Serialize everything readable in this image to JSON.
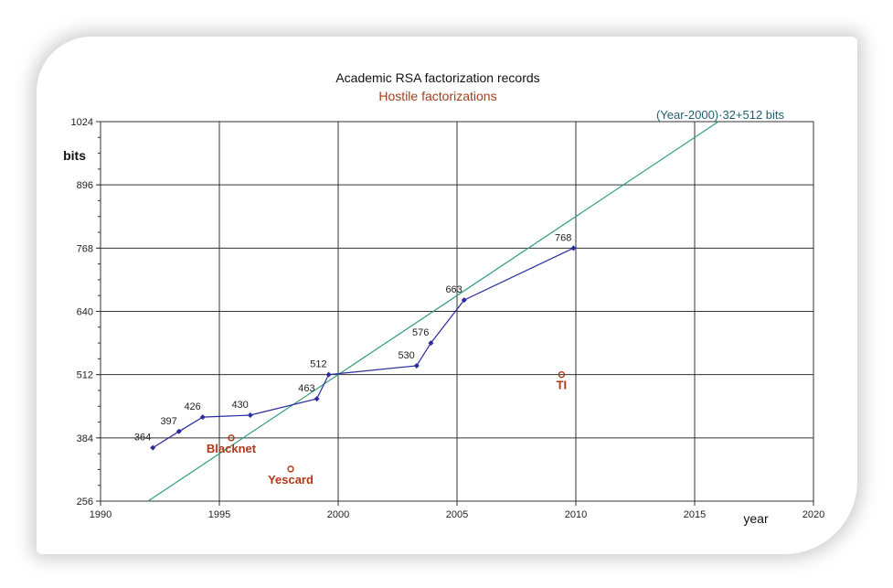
{
  "chart_data": {
    "type": "line",
    "title": "Academic RSA factorization records",
    "subtitle": "Hostile factorizations",
    "ylabel": "bits",
    "xlabel": "year",
    "xlim": [
      1990,
      2020
    ],
    "ylim": [
      256,
      1024
    ],
    "x_ticks": [
      "1990",
      "1995",
      "2000",
      "2005",
      "2010",
      "2015",
      "2020"
    ],
    "y_ticks": [
      "256",
      "384",
      "512",
      "640",
      "768",
      "896",
      "1024"
    ],
    "x_tick_values": [
      1990,
      1995,
      2000,
      2005,
      2010,
      2015,
      2020
    ],
    "y_tick_values": [
      256,
      384,
      512,
      640,
      768,
      896,
      1024
    ],
    "trend": {
      "label": "(Year-2000)·32+512 bits",
      "slope": 32,
      "base_year": 2000,
      "base_bits": 512,
      "color": "#2e9c7e"
    },
    "series": [
      {
        "name": "Academic RSA factorization records",
        "color": "#2a2aa0",
        "points": [
          {
            "x": 1992.2,
            "y": 364,
            "label": "364"
          },
          {
            "x": 1993.3,
            "y": 397,
            "label": "397"
          },
          {
            "x": 1994.3,
            "y": 426,
            "label": "426"
          },
          {
            "x": 1996.3,
            "y": 430,
            "label": "430"
          },
          {
            "x": 1999.1,
            "y": 463,
            "label": "463"
          },
          {
            "x": 1999.6,
            "y": 512,
            "label": "512"
          },
          {
            "x": 2003.3,
            "y": 530,
            "label": "530"
          },
          {
            "x": 2003.9,
            "y": 576,
            "label": "576"
          },
          {
            "x": 2005.3,
            "y": 663,
            "label": "663"
          },
          {
            "x": 2009.9,
            "y": 768,
            "label": "768"
          }
        ]
      }
    ],
    "hostile": [
      {
        "name": "Blacknet",
        "x": 1995.5,
        "y": 384
      },
      {
        "name": "Yescard",
        "x": 1998.0,
        "y": 321
      },
      {
        "name": "TI",
        "x": 2009.4,
        "y": 512
      }
    ]
  }
}
